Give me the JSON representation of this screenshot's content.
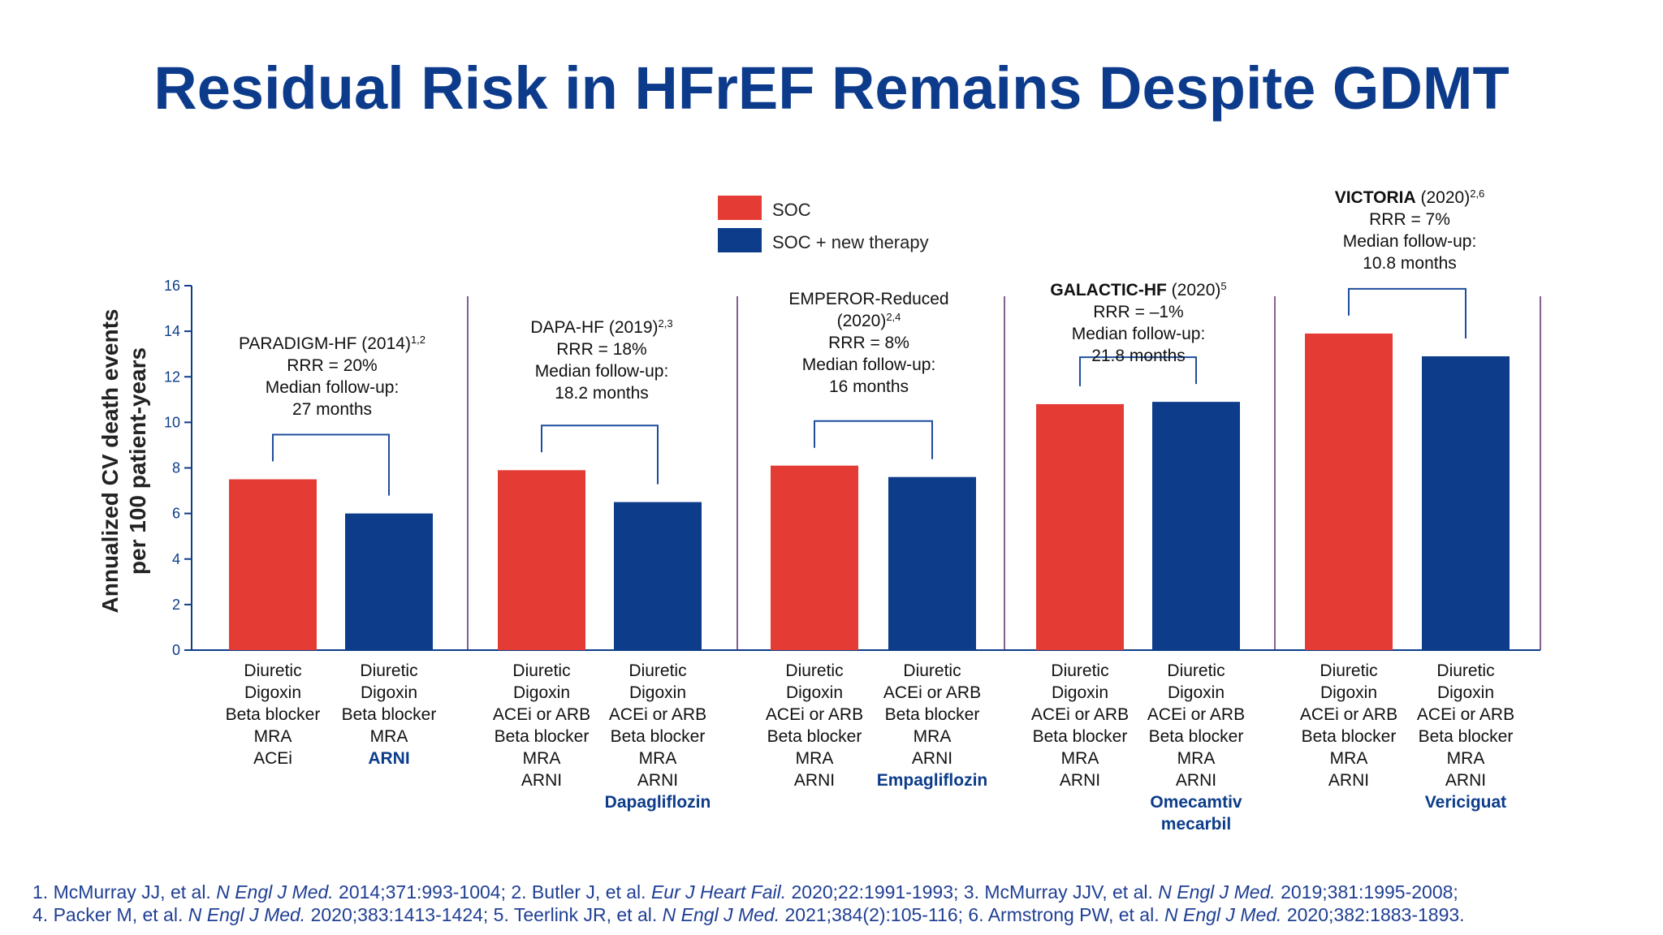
{
  "title": "Residual Risk in HFrEF Remains Despite GDMT",
  "colors": {
    "soc": "#e43c35",
    "new": "#0c3c8a",
    "title": "#0d3b8c",
    "divider": "#5b2b6b",
    "axis": "#0c3c8a",
    "bracket": "#1f4d9c"
  },
  "chart_data": {
    "type": "bar",
    "ylabel": [
      "Annualized CV death events",
      "per 100 patient-years"
    ],
    "ylim": [
      0,
      16
    ],
    "yticks": [
      0,
      2,
      4,
      6,
      8,
      10,
      12,
      14,
      16
    ],
    "legend": {
      "position": "top-center",
      "items": [
        {
          "label": "SOC",
          "color": "#e43c35"
        },
        {
          "label": "SOC + new therapy",
          "color": "#0c3c8a"
        }
      ]
    },
    "series": [
      {
        "values": [
          7.5,
          7.9,
          8.1,
          10.8,
          13.9
        ]
      },
      {
        "values": [
          6.0,
          6.5,
          7.6,
          10.9,
          12.9
        ]
      }
    ],
    "trials": [
      {
        "annotation": [
          [
            {
              "t": "PARADIGM-HF (2014)"
            },
            {
              "t": "1,2",
              "sup": true
            }
          ],
          [
            {
              "t": "RRR = 20%"
            }
          ],
          [
            {
              "t": "Median follow-up:"
            }
          ],
          [
            {
              "t": "27 months"
            }
          ]
        ],
        "soc_lines": [
          {
            "t": "Diuretic"
          },
          {
            "t": "Digoxin"
          },
          {
            "t": "Beta blocker"
          },
          {
            "t": "MRA"
          },
          {
            "t": "ACEi"
          }
        ],
        "new_lines": [
          {
            "t": "Diuretic"
          },
          {
            "t": "Digoxin"
          },
          {
            "t": "Beta blocker"
          },
          {
            "t": "MRA"
          },
          {
            "t": "ARNI",
            "b": true
          }
        ]
      },
      {
        "annotation": [
          [
            {
              "t": "DAPA-HF (2019)"
            },
            {
              "t": "2,3",
              "sup": true
            }
          ],
          [
            {
              "t": "RRR = 18%"
            }
          ],
          [
            {
              "t": "Median follow-up:"
            }
          ],
          [
            {
              "t": "18.2 months"
            }
          ]
        ],
        "soc_lines": [
          {
            "t": "Diuretic"
          },
          {
            "t": "Digoxin"
          },
          {
            "t": "ACEi or ARB"
          },
          {
            "t": "Beta blocker"
          },
          {
            "t": "MRA"
          },
          {
            "t": "ARNI"
          }
        ],
        "new_lines": [
          {
            "t": "Diuretic"
          },
          {
            "t": "Digoxin"
          },
          {
            "t": "ACEi or ARB"
          },
          {
            "t": "Beta blocker"
          },
          {
            "t": "MRA"
          },
          {
            "t": "ARNI"
          },
          {
            "t": "Dapagliflozin",
            "b": true
          }
        ]
      },
      {
        "annotation": [
          [
            {
              "t": "EMPEROR-Reduced"
            }
          ],
          [
            {
              "t": "(2020)"
            },
            {
              "t": "2,4",
              "sup": true
            }
          ],
          [
            {
              "t": "RRR = 8%"
            }
          ],
          [
            {
              "t": "Median follow-up:"
            }
          ],
          [
            {
              "t": "16 months"
            }
          ]
        ],
        "soc_lines": [
          {
            "t": "Diuretic"
          },
          {
            "t": "Digoxin"
          },
          {
            "t": "ACEi or ARB"
          },
          {
            "t": "Beta blocker"
          },
          {
            "t": "MRA"
          },
          {
            "t": "ARNI"
          }
        ],
        "new_lines": [
          {
            "t": "Diuretic"
          },
          {
            "t": "ACEi or ARB"
          },
          {
            "t": "Beta blocker"
          },
          {
            "t": "MRA"
          },
          {
            "t": "ARNI"
          },
          {
            "t": "Empagliflozin",
            "b": true
          }
        ]
      },
      {
        "annotation": [
          [
            {
              "t": "GALACTIC-HF",
              "bb": true
            },
            {
              "t": " (2020)"
            },
            {
              "t": "5",
              "sup": true
            }
          ],
          [
            {
              "t": "RRR = –1%"
            }
          ],
          [
            {
              "t": "Median follow-up:"
            }
          ],
          [
            {
              "t": "21.8 months"
            }
          ]
        ],
        "soc_lines": [
          {
            "t": "Diuretic"
          },
          {
            "t": "Digoxin"
          },
          {
            "t": "ACEi or ARB"
          },
          {
            "t": "Beta blocker"
          },
          {
            "t": "MRA"
          },
          {
            "t": "ARNI"
          }
        ],
        "new_lines": [
          {
            "t": "Diuretic"
          },
          {
            "t": "Digoxin"
          },
          {
            "t": "ACEi or ARB"
          },
          {
            "t": "Beta blocker"
          },
          {
            "t": "MRA"
          },
          {
            "t": "ARNI"
          },
          {
            "t": "Omecamtiv",
            "b": true
          },
          {
            "t": "mecarbil",
            "b": true
          }
        ]
      },
      {
        "annotation": [
          [
            {
              "t": "VICTORIA",
              "bb": true
            },
            {
              "t": " (2020)"
            },
            {
              "t": "2,6",
              "sup": true
            }
          ],
          [
            {
              "t": "RRR = 7%"
            }
          ],
          [
            {
              "t": "Median follow-up:"
            }
          ],
          [
            {
              "t": "10.8 months"
            }
          ]
        ],
        "soc_lines": [
          {
            "t": "Diuretic"
          },
          {
            "t": "Digoxin"
          },
          {
            "t": "ACEi or ARB"
          },
          {
            "t": "Beta blocker"
          },
          {
            "t": "MRA"
          },
          {
            "t": "ARNI"
          }
        ],
        "new_lines": [
          {
            "t": "Diuretic"
          },
          {
            "t": "Digoxin"
          },
          {
            "t": "ACEi or ARB"
          },
          {
            "t": "Beta blocker"
          },
          {
            "t": "MRA"
          },
          {
            "t": "ARNI"
          },
          {
            "t": "Vericiguat",
            "b": true
          }
        ]
      }
    ]
  },
  "references": {
    "line1": [
      {
        "t": "1. McMurray JJ, et al. "
      },
      {
        "t": "N Engl J Med.",
        "i": true
      },
      {
        "t": " 2014;371:993-1004; 2. Butler J, et al. "
      },
      {
        "t": "Eur J Heart Fail.",
        "i": true
      },
      {
        "t": " 2020;22:1991-1993; 3. McMurray JJV, et al. "
      },
      {
        "t": "N Engl J Med.",
        "i": true
      },
      {
        "t": " 2019;381:1995-2008;"
      }
    ],
    "line2": [
      {
        "t": "4. Packer M, et al. "
      },
      {
        "t": "N Engl J Med.",
        "i": true
      },
      {
        "t": " 2020;383:1413-1424; 5. Teerlink JR, et al. "
      },
      {
        "t": "N Engl J Med.",
        "i": true
      },
      {
        "t": " 2021;384(2):105-116; 6. Armstrong PW, et al. "
      },
      {
        "t": "N Engl J Med.",
        "i": true
      },
      {
        "t": " 2020;382:1883-1893."
      }
    ]
  }
}
